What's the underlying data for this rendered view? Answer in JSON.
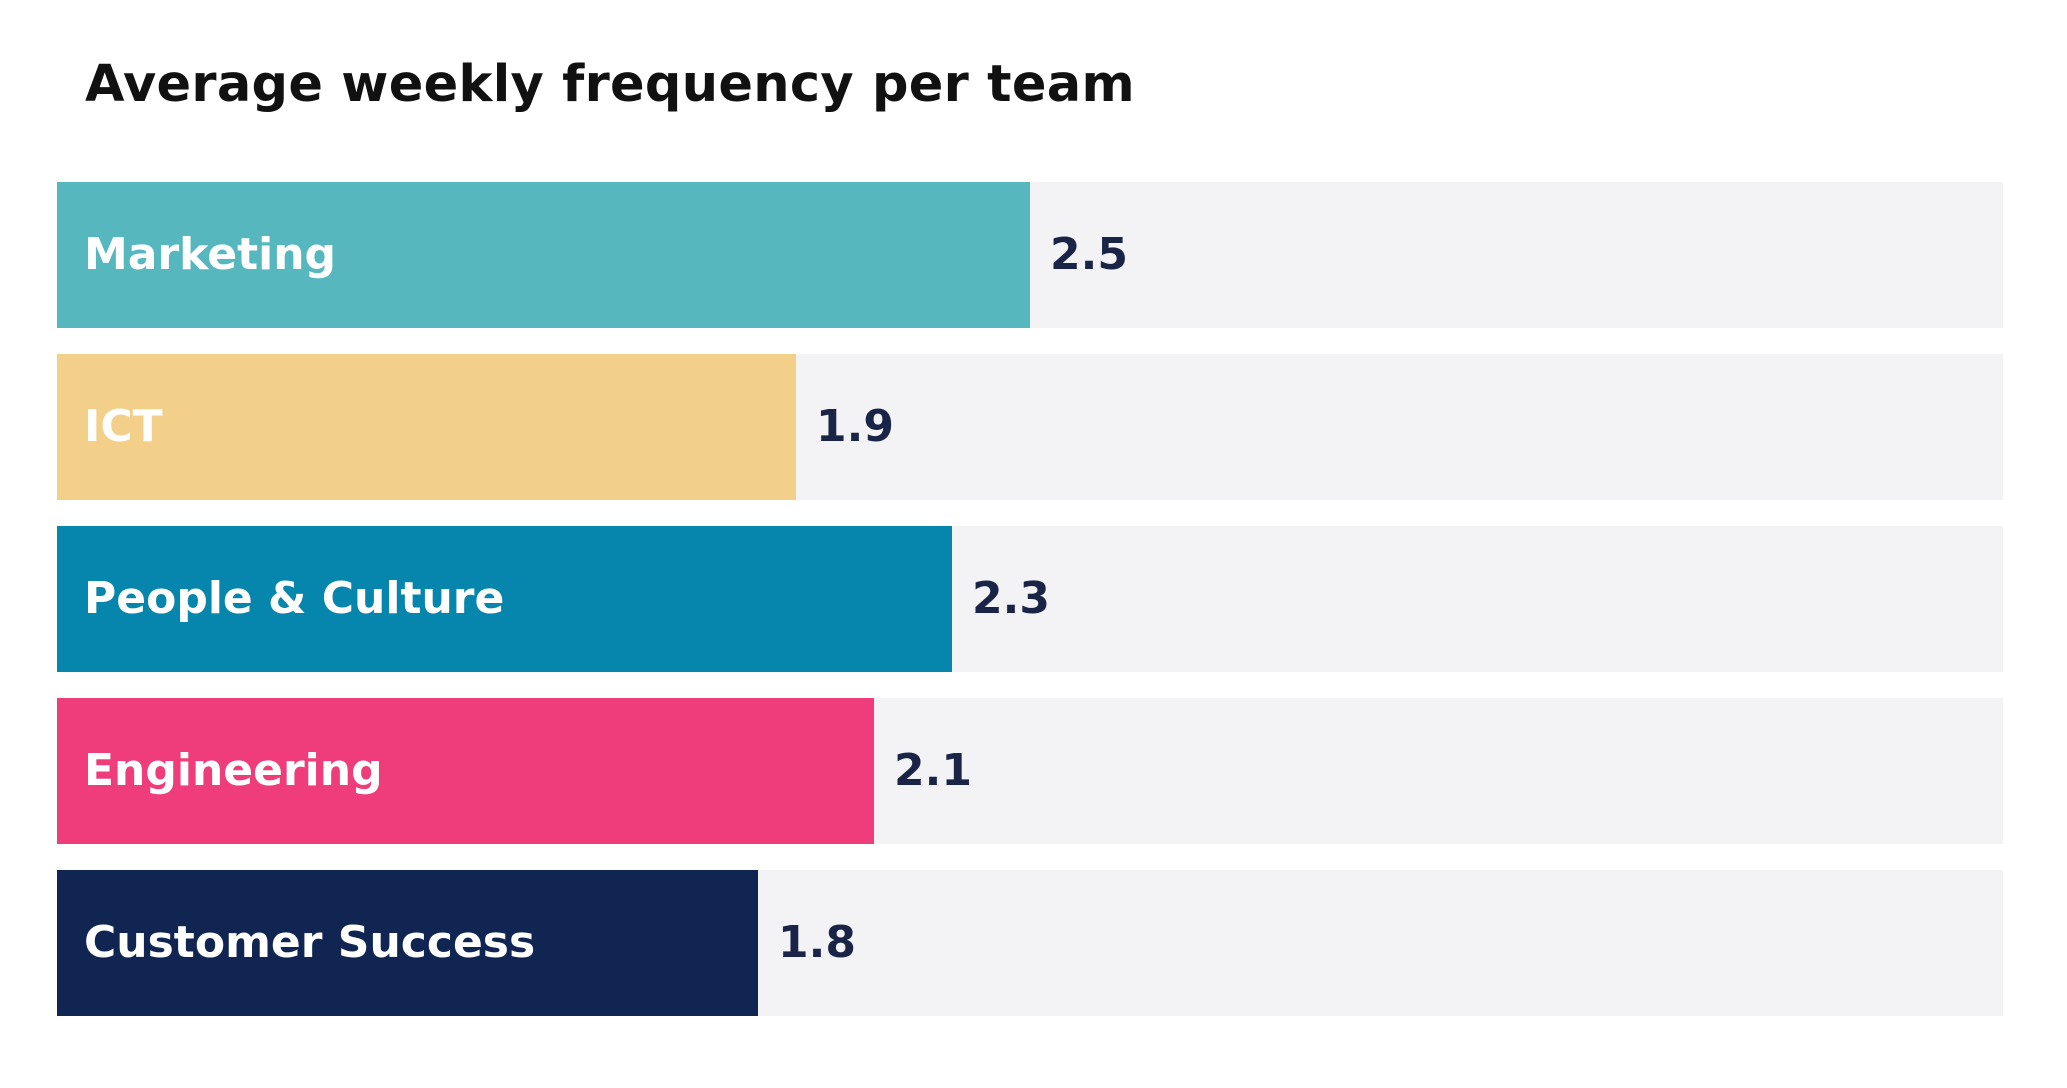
{
  "chart_data": {
    "type": "bar",
    "orientation": "horizontal",
    "title": "Average weekly frequency per team",
    "xlabel": "",
    "ylabel": "",
    "xlim": [
      0,
      5
    ],
    "grid": false,
    "categories": [
      "Marketing",
      "ICT",
      "People & Culture",
      "Engineering",
      "Customer Success"
    ],
    "values": [
      2.5,
      1.9,
      2.3,
      2.1,
      1.8
    ],
    "value_labels": [
      "2.5",
      "1.9",
      "2.3",
      "2.1",
      "1.8"
    ],
    "colors": [
      "#56b8be",
      "#f2d08a",
      "#0685ad",
      "#ee3d7a",
      "#102552"
    ],
    "track_color": "#f3f3f6",
    "label_color": "#ffffff",
    "value_color": "#1a2447"
  }
}
